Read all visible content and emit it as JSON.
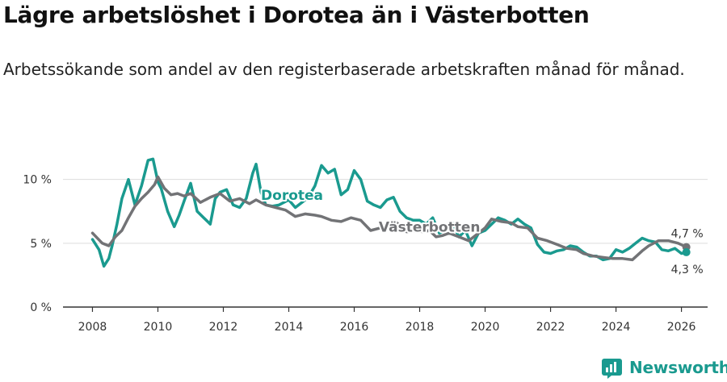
{
  "title": "Lägre arbetslöshet i Dorotea än i Västerbotten",
  "subtitle": "Arbetssökande som andel av den registerbaserade arbetskraften månad för månad.",
  "brand": {
    "name": "Newsworthy",
    "icon": "newsworthy-logo-icon"
  },
  "colors": {
    "dorotea": "#1a9a8f",
    "vasterbotten": "#727376",
    "grid": "#dddddd",
    "axis": "#333333"
  },
  "chart_data": {
    "type": "line",
    "xlim": [
      2007.1,
      2026.8
    ],
    "ylim": [
      0,
      12
    ],
    "x_ticks": [
      2008,
      2010,
      2012,
      2014,
      2016,
      2018,
      2020,
      2022,
      2024,
      2026
    ],
    "x_tick_labels": [
      "2008",
      "2010",
      "2012",
      "2014",
      "2016",
      "2018",
      "2020",
      "2022",
      "2024",
      "2026"
    ],
    "y_ticks": [
      0,
      5,
      10
    ],
    "y_tick_labels": [
      "0 %",
      "5 %",
      "10 %"
    ],
    "grid": true,
    "series": [
      {
        "name": "Dorotea",
        "key": "dorotea",
        "label_x": 2014.1,
        "label_y": 8.4,
        "x": [
          2008.0,
          2008.2,
          2008.35,
          2008.5,
          2008.6,
          2008.75,
          2008.9,
          2009.1,
          2009.3,
          2009.5,
          2009.7,
          2009.85,
          2010.0,
          2010.1,
          2010.3,
          2010.5,
          2010.65,
          2010.8,
          2011.0,
          2011.2,
          2011.4,
          2011.6,
          2011.75,
          2011.9,
          2012.1,
          2012.3,
          2012.5,
          2012.7,
          2012.9,
          2013.0,
          2013.15,
          2013.3,
          2013.5,
          2013.7,
          2014.0,
          2014.2,
          2014.4,
          2014.6,
          2014.8,
          2015.0,
          2015.2,
          2015.4,
          2015.6,
          2015.8,
          2016.0,
          2016.2,
          2016.4,
          2016.6,
          2016.8,
          2017.0,
          2017.2,
          2017.4,
          2017.6,
          2017.8,
          2018.0,
          2018.2,
          2018.4,
          2018.6,
          2018.8,
          2019.0,
          2019.2,
          2019.4,
          2019.6,
          2019.8,
          2020.0,
          2020.2,
          2020.4,
          2020.6,
          2020.8,
          2021.0,
          2021.2,
          2021.4,
          2021.6,
          2021.8,
          2022.0,
          2022.2,
          2022.4,
          2022.6,
          2022.8,
          2023.0,
          2023.2,
          2023.4,
          2023.6,
          2023.8,
          2024.0,
          2024.2,
          2024.4,
          2024.6,
          2024.8,
          2025.0,
          2025.2,
          2025.4,
          2025.6,
          2025.8,
          2026.0,
          2026.15
        ],
        "y": [
          5.3,
          4.5,
          3.2,
          3.8,
          4.8,
          6.5,
          8.5,
          10.0,
          8.0,
          9.5,
          11.5,
          11.6,
          9.8,
          9.3,
          7.5,
          6.3,
          7.2,
          8.3,
          9.7,
          7.5,
          7.0,
          6.5,
          8.5,
          9.0,
          9.2,
          8.0,
          7.8,
          8.5,
          10.5,
          11.2,
          9.0,
          8.0,
          7.9,
          8.0,
          8.4,
          7.8,
          8.2,
          8.6,
          9.5,
          11.1,
          10.5,
          10.8,
          8.8,
          9.2,
          10.7,
          10.0,
          8.3,
          8.0,
          7.8,
          8.4,
          8.6,
          7.5,
          7.0,
          6.8,
          6.8,
          6.5,
          7.0,
          5.8,
          6.0,
          6.6,
          5.5,
          6.0,
          4.8,
          5.8,
          6.0,
          6.5,
          7.0,
          6.8,
          6.5,
          6.9,
          6.5,
          6.2,
          4.9,
          4.3,
          4.2,
          4.4,
          4.5,
          4.8,
          4.7,
          4.3,
          4.0,
          4.0,
          3.7,
          3.8,
          4.5,
          4.3,
          4.6,
          5.0,
          5.4,
          5.2,
          5.1,
          4.5,
          4.4,
          4.6,
          4.2,
          4.3
        ]
      },
      {
        "name": "Västerbotten",
        "key": "vasterbotten",
        "label_x": 2018.3,
        "label_y": 5.9,
        "x": [
          2008.0,
          2008.3,
          2008.5,
          2008.7,
          2008.9,
          2009.1,
          2009.3,
          2009.5,
          2009.7,
          2009.9,
          2010.0,
          2010.2,
          2010.4,
          2010.6,
          2010.8,
          2011.0,
          2011.3,
          2011.6,
          2011.9,
          2012.2,
          2012.5,
          2012.8,
          2013.0,
          2013.3,
          2013.6,
          2013.9,
          2014.2,
          2014.5,
          2014.8,
          2015.0,
          2015.3,
          2015.6,
          2015.9,
          2016.2,
          2016.5,
          2016.8,
          2017.0,
          2017.3,
          2017.6,
          2017.9,
          2018.1,
          2018.3,
          2018.5,
          2018.7,
          2018.9,
          2019.2,
          2019.5,
          2019.8,
          2020.0,
          2020.2,
          2020.5,
          2020.8,
          2021.0,
          2021.3,
          2021.6,
          2021.9,
          2022.2,
          2022.5,
          2022.8,
          2023.0,
          2023.3,
          2023.6,
          2023.9,
          2024.2,
          2024.5,
          2024.8,
          2025.0,
          2025.3,
          2025.6,
          2025.9,
          2026.15
        ],
        "y": [
          5.8,
          5.0,
          4.8,
          5.5,
          6.0,
          7.0,
          7.9,
          8.5,
          9.0,
          9.6,
          10.2,
          9.3,
          8.8,
          8.9,
          8.7,
          8.9,
          8.2,
          8.6,
          8.9,
          8.3,
          8.5,
          8.1,
          8.4,
          8.0,
          7.8,
          7.6,
          7.1,
          7.3,
          7.2,
          7.1,
          6.8,
          6.7,
          7.0,
          6.8,
          6.0,
          6.2,
          6.3,
          6.6,
          5.9,
          6.0,
          5.9,
          6.0,
          5.5,
          5.6,
          5.8,
          5.5,
          5.2,
          5.8,
          6.2,
          6.9,
          6.7,
          6.6,
          6.3,
          6.2,
          5.4,
          5.2,
          4.9,
          4.6,
          4.5,
          4.2,
          4.0,
          3.9,
          3.8,
          3.8,
          3.7,
          4.4,
          4.8,
          5.2,
          5.2,
          5.0,
          4.7
        ]
      }
    ],
    "end_labels": [
      {
        "series": "vasterbotten",
        "text": "4,7 %",
        "position": "above"
      },
      {
        "series": "dorotea",
        "text": "4,3 %",
        "position": "below"
      }
    ]
  }
}
